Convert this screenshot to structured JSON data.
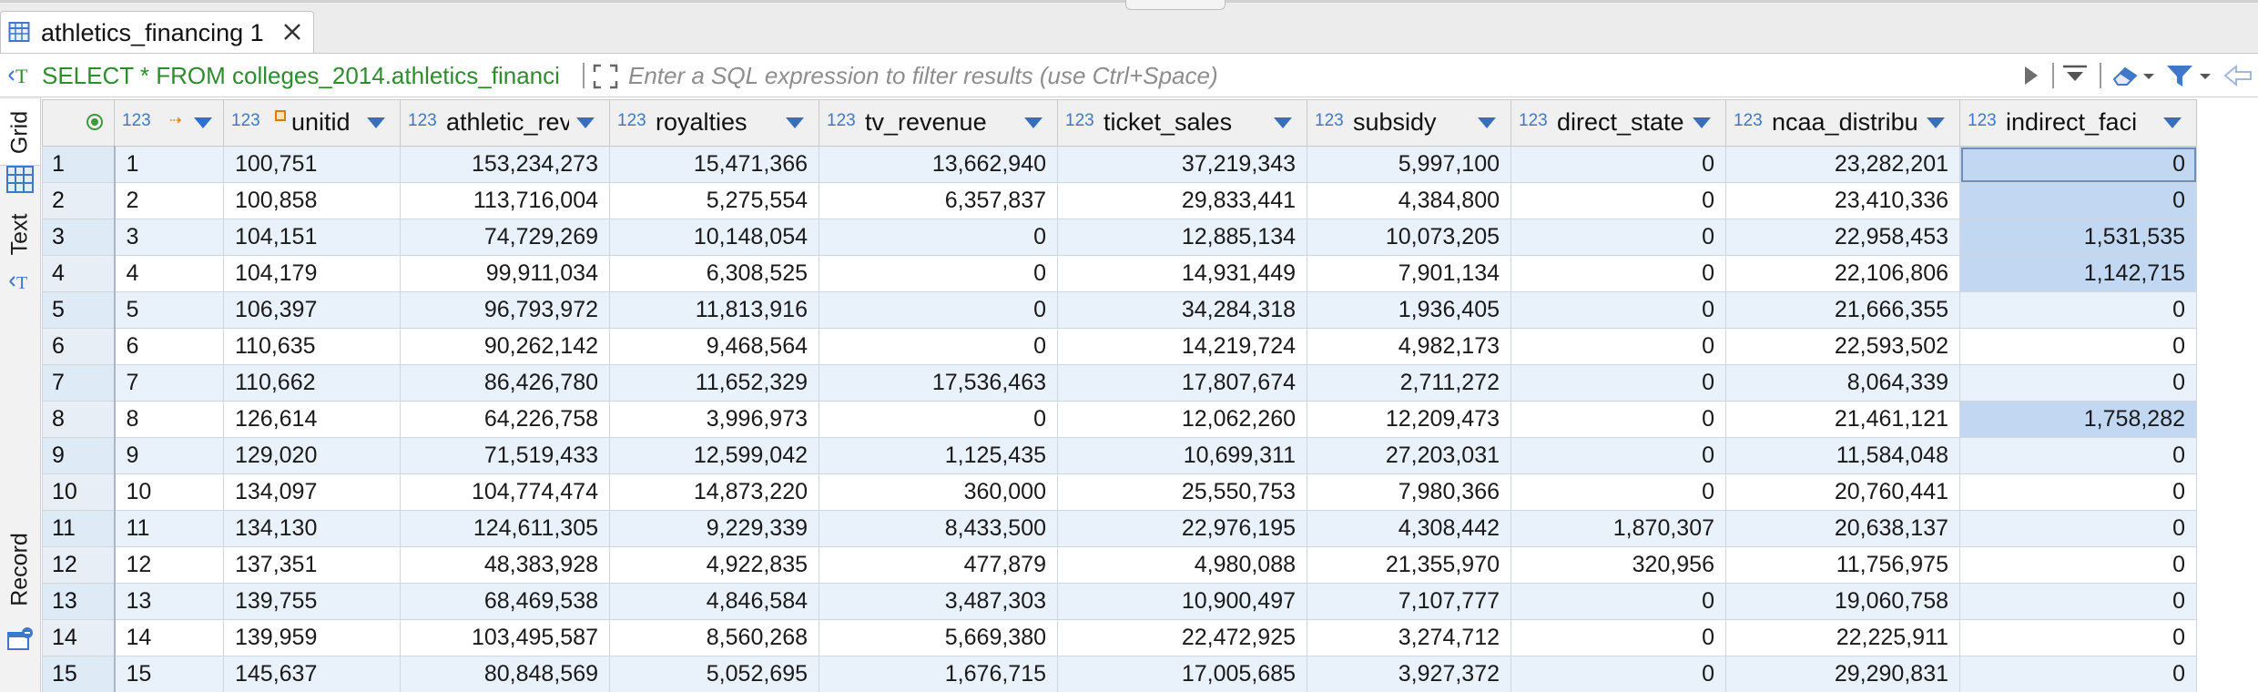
{
  "tab": {
    "title": "athletics_financing 1",
    "icon": "table-icon",
    "close_icon": "close-icon"
  },
  "filter": {
    "sql_icon": "sql-text-icon",
    "sql": "SELECT * FROM colleges_2014.athletics_financi",
    "placeholder": "Enter a SQL expression to filter results (use Ctrl+Space)",
    "buttons": [
      "play-icon",
      "history-dropdown-icon",
      "eraser-icon",
      "funnel-icon",
      "back-arrow-icon"
    ]
  },
  "side_panel": {
    "tabs": [
      "Grid",
      "Text",
      "Record"
    ]
  },
  "grid": {
    "type_label": "123",
    "columns": [
      "unitid",
      "athletic_revenues",
      "royalties",
      "tv_revenue",
      "ticket_sales",
      "subsidy",
      "direct_state",
      "ncaa_distribu",
      "indirect_faci"
    ],
    "rows": [
      [
        "1",
        "1",
        "100,751",
        "153,234,273",
        "15,471,366",
        "13,662,940",
        "37,219,343",
        "5,997,100",
        "0",
        "23,282,201",
        "0"
      ],
      [
        "2",
        "2",
        "100,858",
        "113,716,004",
        "5,275,554",
        "6,357,837",
        "29,833,441",
        "4,384,800",
        "0",
        "23,410,336",
        "0"
      ],
      [
        "3",
        "3",
        "104,151",
        "74,729,269",
        "10,148,054",
        "0",
        "12,885,134",
        "10,073,205",
        "0",
        "22,958,453",
        "1,531,535"
      ],
      [
        "4",
        "4",
        "104,179",
        "99,911,034",
        "6,308,525",
        "0",
        "14,931,449",
        "7,901,134",
        "0",
        "22,106,806",
        "1,142,715"
      ],
      [
        "5",
        "5",
        "106,397",
        "96,793,972",
        "11,813,916",
        "0",
        "34,284,318",
        "1,936,405",
        "0",
        "21,666,355",
        "0"
      ],
      [
        "6",
        "6",
        "110,635",
        "90,262,142",
        "9,468,564",
        "0",
        "14,219,724",
        "4,982,173",
        "0",
        "22,593,502",
        "0"
      ],
      [
        "7",
        "7",
        "110,662",
        "86,426,780",
        "11,652,329",
        "17,536,463",
        "17,807,674",
        "2,711,272",
        "0",
        "8,064,339",
        "0"
      ],
      [
        "8",
        "8",
        "126,614",
        "64,226,758",
        "3,996,973",
        "0",
        "12,062,260",
        "12,209,473",
        "0",
        "21,461,121",
        "1,758,282"
      ],
      [
        "9",
        "9",
        "129,020",
        "71,519,433",
        "12,599,042",
        "1,125,435",
        "10,699,311",
        "27,203,031",
        "0",
        "11,584,048",
        "0"
      ],
      [
        "10",
        "10",
        "134,097",
        "104,774,474",
        "14,873,220",
        "360,000",
        "25,550,753",
        "7,980,366",
        "0",
        "20,760,441",
        "0"
      ],
      [
        "11",
        "11",
        "134,130",
        "124,611,305",
        "9,229,339",
        "8,433,500",
        "22,976,195",
        "4,308,442",
        "1,870,307",
        "20,638,137",
        "0"
      ],
      [
        "12",
        "12",
        "137,351",
        "48,383,928",
        "4,922,835",
        "477,879",
        "4,980,088",
        "21,355,970",
        "320,956",
        "11,756,975",
        "0"
      ],
      [
        "13",
        "13",
        "139,755",
        "68,469,538",
        "4,846,584",
        "3,487,303",
        "10,900,497",
        "7,107,777",
        "0",
        "19,060,758",
        "0"
      ],
      [
        "14",
        "14",
        "139,959",
        "103,495,587",
        "8,560,268",
        "5,669,380",
        "22,472,925",
        "3,274,712",
        "0",
        "22,225,911",
        "0"
      ],
      [
        "15",
        "15",
        "145,637",
        "80,848,569",
        "5,052,695",
        "1,676,715",
        "17,005,685",
        "3,927,372",
        "0",
        "29,290,831",
        "0"
      ]
    ]
  },
  "colors": {
    "row_alt": "#e9f1fb",
    "selected_cell": "#c2d7f2",
    "sql_green": "#2e8b2e",
    "type_blue": "#3f78c8"
  }
}
